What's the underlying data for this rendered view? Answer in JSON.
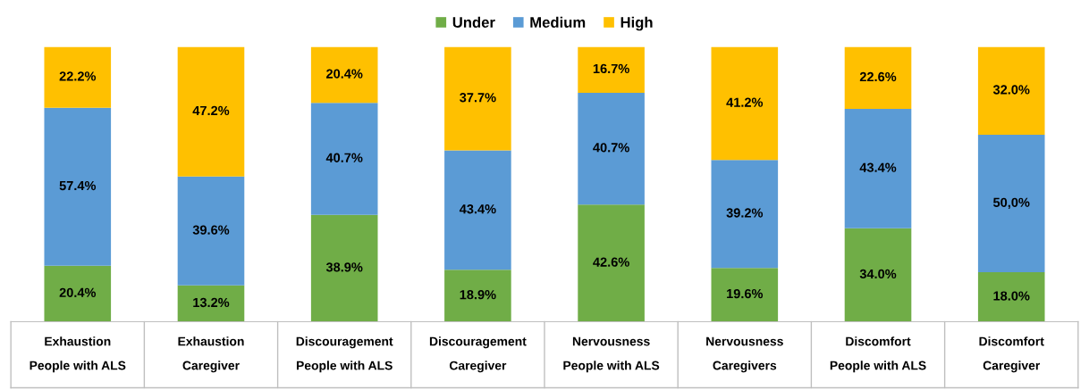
{
  "chart_data": {
    "type": "bar",
    "stacked": true,
    "legend": "top",
    "categories": [
      "Exhaustion\nPeople with ALS",
      "Exhaustion\nCaregiver",
      "Discouragement\nPeople with ALS",
      "Discouragement\nCaregiver",
      "Nervousness\nPeople with ALS",
      "Nervousness\nCaregivers",
      "Discomfort\nPeople with ALS",
      "Discomfort\nCaregiver"
    ],
    "series": [
      {
        "name": "Under",
        "color": "#70ad47",
        "values": [
          20.4,
          13.2,
          38.9,
          18.9,
          42.6,
          19.6,
          34.0,
          18.0
        ],
        "value_labels": [
          "20.4%",
          "13.2%",
          "38.9%",
          "18.9%",
          "42.6%",
          "19.6%",
          "34.0%",
          "18.0%"
        ]
      },
      {
        "name": "Medium",
        "color": "#5b9bd5",
        "values": [
          57.4,
          39.6,
          40.7,
          43.4,
          40.7,
          39.2,
          43.4,
          50.0
        ],
        "value_labels": [
          "57.4%",
          "39.6%",
          "40.7%",
          "43.4%",
          "40.7%",
          "39.2%",
          "43.4%",
          "50,0%"
        ]
      },
      {
        "name": "High",
        "color": "#ffc000",
        "values": [
          22.2,
          47.2,
          20.4,
          37.7,
          16.7,
          41.2,
          22.6,
          32.0
        ],
        "value_labels": [
          "22.2%",
          "47.2%",
          "20.4%",
          "37.7%",
          "16.7%",
          "41.2%",
          "22.6%",
          "32.0%"
        ]
      }
    ]
  }
}
